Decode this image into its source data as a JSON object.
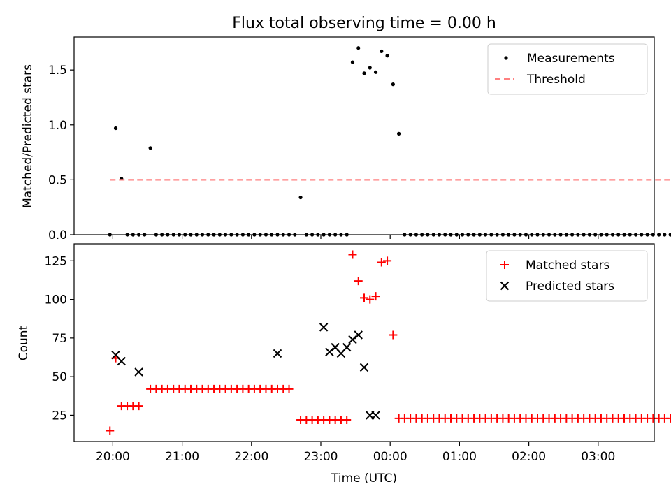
{
  "chart_data": [
    {
      "type": "scatter",
      "title": "Flux total observing time = 0.00 h",
      "xlabel": "",
      "ylabel": "Matched/Predicted stars",
      "ylim": [
        0,
        1.8
      ],
      "yticks": [
        "0.0",
        "0.5",
        "1.0",
        "1.5"
      ],
      "legend_position": "top-right",
      "legend": [
        {
          "label": "Measurements",
          "series": "measurements"
        },
        {
          "label": "Threshold",
          "series": "threshold"
        }
      ],
      "series": [
        {
          "name": "Measurements",
          "key": "measurements",
          "marker": "dot",
          "color": "#000000",
          "x": [
            -5,
            5,
            15,
            25,
            35,
            45,
            55,
            65,
            75,
            85,
            95,
            105,
            115,
            125,
            135,
            145,
            155,
            165,
            175,
            185,
            195,
            205,
            215,
            225,
            235,
            245,
            255,
            265,
            275,
            285,
            295,
            305,
            315,
            325,
            335,
            345,
            355,
            365,
            375,
            385,
            395,
            405,
            415,
            425,
            435,
            445,
            455,
            465,
            475,
            485,
            495,
            505,
            515,
            525,
            535,
            545,
            555,
            565,
            575,
            585,
            595,
            605,
            615,
            625,
            635,
            645,
            655,
            665,
            675,
            685,
            695,
            705,
            715,
            725,
            735,
            745,
            755,
            765,
            775,
            785,
            795,
            805,
            815,
            825,
            835,
            845,
            855,
            865,
            875,
            885,
            895,
            905,
            915,
            925,
            935,
            945,
            955,
            965
          ],
          "y": [
            0,
            0.97,
            0.51,
            0,
            0,
            0,
            0,
            0.79,
            0,
            0,
            0,
            0,
            0,
            0,
            0,
            0,
            0,
            0,
            0,
            0,
            0,
            0,
            0,
            0,
            0,
            0,
            0,
            0,
            0,
            0,
            0,
            0,
            0,
            0.34,
            0,
            0,
            0,
            0,
            0,
            0,
            0,
            0,
            1.57,
            1.7,
            1.47,
            1.52,
            1.48,
            1.67,
            1.63,
            1.37,
            0.92,
            0,
            0,
            0,
            0,
            0,
            0,
            0,
            0,
            0,
            0,
            0,
            0,
            0,
            0,
            0,
            0,
            0,
            0,
            0,
            0,
            0,
            0,
            0,
            0,
            0,
            0,
            0,
            0,
            0,
            0,
            0,
            0,
            0,
            0,
            0,
            0,
            0,
            0,
            0,
            0,
            0,
            0,
            0,
            0,
            0,
            0,
            0
          ]
        },
        {
          "name": "Threshold",
          "key": "threshold",
          "marker": "dashed-line",
          "color": "#ff8080",
          "x": [
            -5,
            965
          ],
          "y": [
            0.5,
            0.5
          ]
        }
      ]
    },
    {
      "type": "scatter",
      "title": "",
      "xlabel": "Time (UTC)",
      "ylabel": "Count",
      "ylim": [
        8,
        136
      ],
      "yticks": [
        "25",
        "50",
        "75",
        "100",
        "125"
      ],
      "xticks": [
        {
          "t": 0,
          "label": "20:00"
        },
        {
          "t": 120,
          "label": "21:00"
        },
        {
          "t": 240,
          "label": "22:00"
        },
        {
          "t": 360,
          "label": "23:00"
        },
        {
          "t": 480,
          "label": "00:00"
        },
        {
          "t": 600,
          "label": "01:00"
        },
        {
          "t": 720,
          "label": "02:00"
        },
        {
          "t": 840,
          "label": "03:00"
        }
      ],
      "x_unit": "minutes after 20:00 UTC",
      "xlim": [
        -67,
        937
      ],
      "legend_position": "top-right",
      "legend": [
        {
          "label": "Matched stars",
          "series": "matched"
        },
        {
          "label": "Predicted stars",
          "series": "predicted"
        }
      ],
      "series": [
        {
          "name": "Matched stars",
          "key": "matched",
          "marker": "plus",
          "color": "#ff0000",
          "x": [
            -5,
            5,
            15,
            25,
            35,
            45,
            55,
            65,
            75,
            85,
            95,
            105,
            115,
            125,
            135,
            145,
            155,
            165,
            175,
            185,
            195,
            205,
            215,
            225,
            235,
            245,
            255,
            265,
            275,
            285,
            295,
            305,
            315,
            325,
            335,
            345,
            355,
            365,
            375,
            385,
            395,
            405,
            415,
            425,
            435,
            445,
            455,
            465,
            475,
            485,
            495,
            505,
            515,
            525,
            535,
            545,
            555,
            565,
            575,
            585,
            595,
            605,
            615,
            625,
            635,
            645,
            655,
            665,
            675,
            685,
            695,
            705,
            715,
            725,
            735,
            745,
            755,
            765,
            775,
            785,
            795,
            805,
            815,
            825,
            835,
            845,
            855,
            865,
            875,
            885,
            895,
            905,
            915,
            925,
            935,
            945,
            955,
            965
          ],
          "y": [
            15,
            62,
            31,
            31,
            31,
            31,
            null,
            42,
            42,
            42,
            42,
            42,
            42,
            42,
            42,
            42,
            42,
            42,
            42,
            42,
            42,
            42,
            42,
            42,
            42,
            42,
            42,
            42,
            42,
            42,
            42,
            42,
            null,
            22,
            22,
            22,
            22,
            22,
            22,
            22,
            22,
            22,
            129,
            112,
            101,
            100,
            102,
            124,
            125,
            77,
            23,
            23,
            23,
            23,
            23,
            23,
            23,
            23,
            23,
            23,
            23,
            23,
            23,
            23,
            23,
            23,
            23,
            23,
            23,
            23,
            23,
            23,
            23,
            23,
            23,
            23,
            23,
            23,
            23,
            23,
            23,
            23,
            23,
            23,
            23,
            23,
            23,
            23,
            23,
            23,
            23,
            23,
            23,
            23,
            23,
            23,
            23,
            23
          ]
        },
        {
          "name": "Predicted stars",
          "key": "predicted",
          "marker": "x",
          "color": "#000000",
          "x": [
            5,
            15,
            45,
            285,
            365,
            375,
            385,
            395,
            405,
            415,
            425,
            435,
            445,
            455
          ],
          "y": [
            64,
            60,
            53,
            65,
            82,
            66,
            69,
            65,
            69,
            74,
            77,
            56,
            25,
            25
          ]
        }
      ]
    }
  ]
}
